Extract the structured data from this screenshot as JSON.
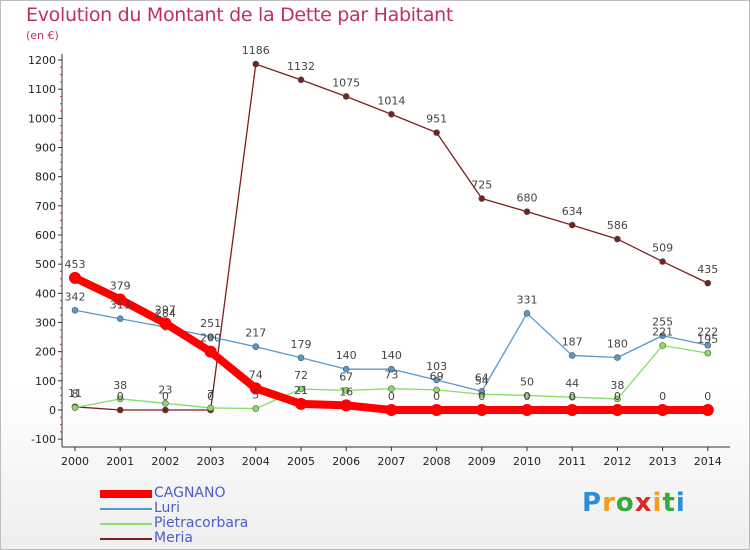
{
  "chart_data": {
    "type": "line",
    "title": "Evolution du Montant de la Dette par Habitant",
    "subtitle": "(en €)",
    "x": [
      "2000",
      "2001",
      "2002",
      "2003",
      "2004",
      "2005",
      "2006",
      "2007",
      "2008",
      "2009",
      "2010",
      "2011",
      "2012",
      "2013",
      "2014"
    ],
    "yticks": [
      "1200",
      "1100",
      "1000",
      "900",
      "800",
      "700",
      "600",
      "500",
      "400",
      "300",
      "200",
      "100",
      "0",
      "-100"
    ],
    "ylim": [
      -100,
      1200
    ],
    "grid": false,
    "legend_position": "bottom-left",
    "series": [
      {
        "name": "CAGNANO",
        "color": "#ff0000",
        "values": [
          453,
          379,
          297,
          200,
          74,
          21,
          16,
          0,
          0,
          0,
          0,
          0,
          0,
          0,
          0
        ],
        "labels": [
          "453",
          "379",
          "297",
          "200",
          "74",
          "21",
          "16",
          "0",
          "0",
          "0",
          "0",
          "0",
          "0",
          "0",
          "0"
        ]
      },
      {
        "name": "Luri",
        "color": "#5599cc",
        "values": [
          342,
          313,
          284,
          251,
          217,
          179,
          140,
          140,
          103,
          64,
          331,
          187,
          180,
          255,
          222
        ],
        "labels": [
          "342",
          "313",
          "284",
          "251",
          "217",
          "179",
          "140",
          "140",
          "103",
          "64",
          "331",
          "187",
          "180",
          "255",
          "222"
        ]
      },
      {
        "name": "Pietracorbara",
        "color": "#88dd66",
        "values": [
          8,
          38,
          23,
          7,
          5,
          72,
          67,
          73,
          69,
          54,
          50,
          44,
          38,
          221,
          195
        ],
        "labels": [
          "8",
          "38",
          "23",
          "7",
          "5",
          "72",
          "67",
          "73",
          "69",
          "54",
          "50",
          "44",
          "38",
          "221",
          "195"
        ]
      },
      {
        "name": "Meria",
        "color": "#7a2020",
        "values": [
          11,
          0,
          0,
          0,
          1186,
          1132,
          1075,
          1014,
          951,
          725,
          680,
          634,
          586,
          509,
          435
        ],
        "labels": [
          "11",
          "0",
          "0",
          "0",
          "1186",
          "1132",
          "1075",
          "1014",
          "951",
          "725",
          "680",
          "634",
          "586",
          "509",
          "435"
        ]
      }
    ]
  },
  "logo": {
    "letters": [
      "P",
      "r",
      "o",
      "x",
      "i",
      "t",
      "i"
    ],
    "colors": [
      "#2a8fd8",
      "#f0a020",
      "#3aa83a",
      "#d82a2a",
      "#f0a020",
      "#3aa83a",
      "#2a8fd8"
    ]
  }
}
